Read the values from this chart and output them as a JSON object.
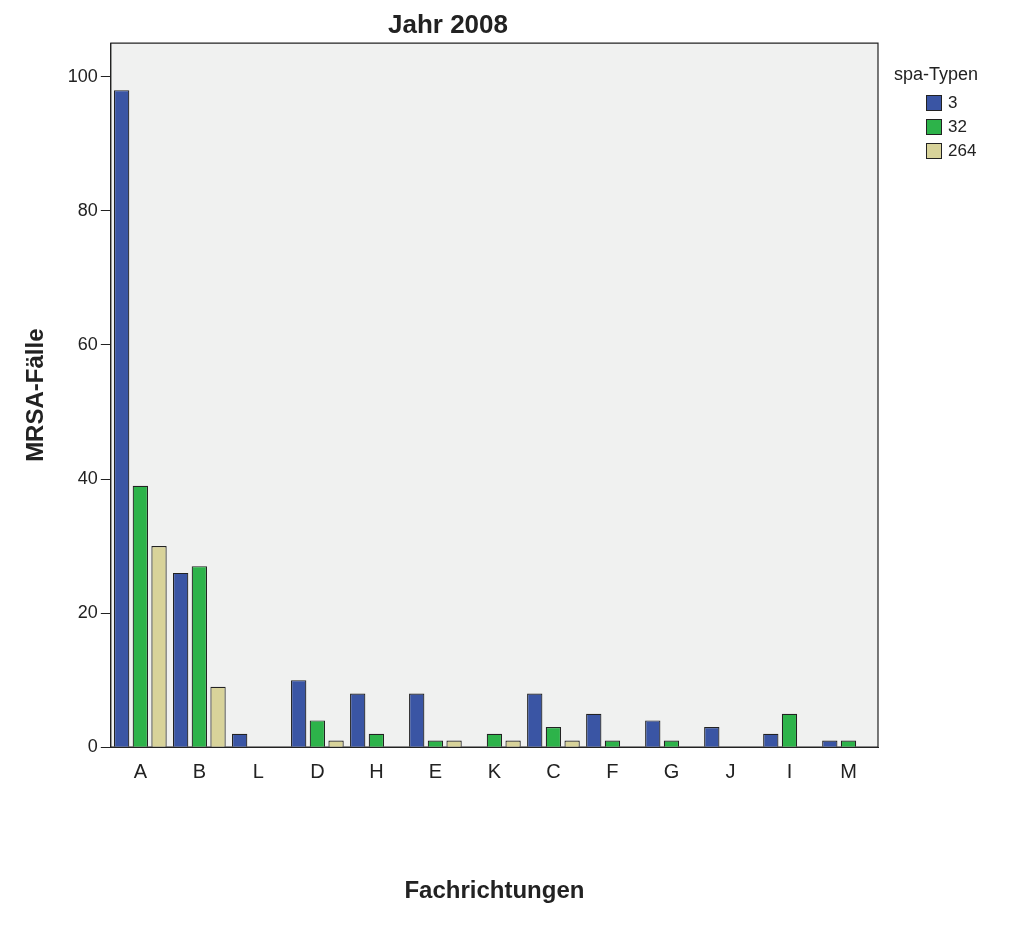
{
  "chart_data": {
    "type": "bar",
    "title": "Jahr 2008",
    "xlabel": "Fachrichtungen",
    "ylabel": "MRSA-Fälle",
    "legend_title": "spa-Typen",
    "categories": [
      "A",
      "B",
      "L",
      "D",
      "H",
      "E",
      "K",
      "C",
      "F",
      "G",
      "J",
      "I",
      "M"
    ],
    "series": [
      {
        "name": "3",
        "color": "#3a55a4",
        "values": [
          98,
          26,
          2,
          10,
          8,
          8,
          0,
          8,
          5,
          4,
          3,
          2,
          1
        ]
      },
      {
        "name": "32",
        "color": "#2db34a",
        "values": [
          39,
          27,
          0,
          4,
          2,
          1,
          2,
          3,
          1,
          1,
          0,
          5,
          1
        ]
      },
      {
        "name": "264",
        "color": "#d8d39a",
        "values": [
          30,
          9,
          0,
          1,
          0,
          1,
          1,
          1,
          0,
          0,
          0,
          0,
          0
        ]
      }
    ],
    "ylim": [
      0,
      105
    ],
    "yticks": [
      0,
      20,
      40,
      60,
      80,
      100
    ],
    "grid": false,
    "legend": "top right"
  }
}
